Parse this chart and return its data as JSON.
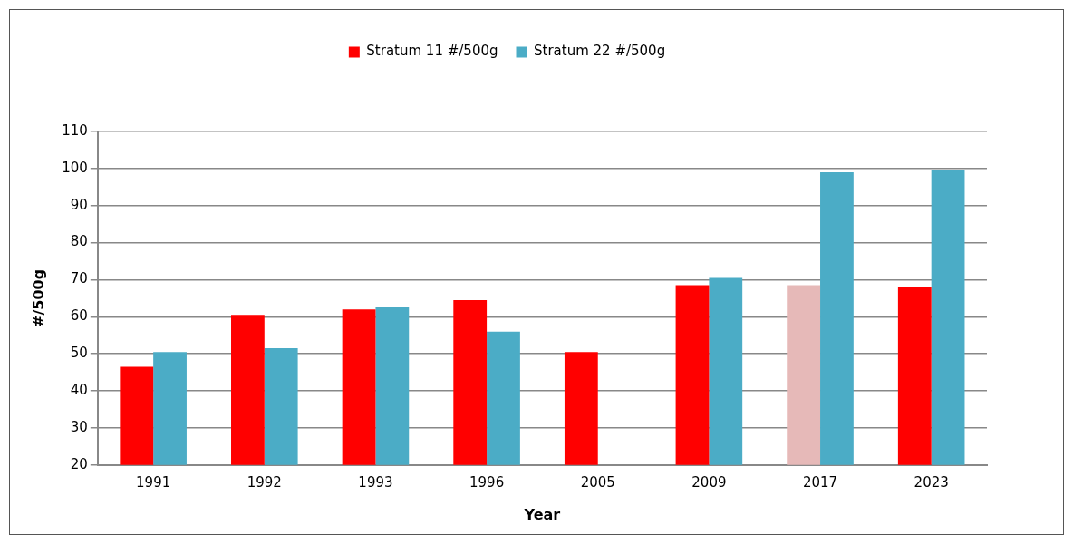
{
  "chart_data": {
    "type": "bar",
    "xlabel": "Year",
    "ylabel": "#/500g",
    "categories": [
      "1991",
      "1992",
      "1993",
      "1996",
      "2005",
      "2009",
      "2017",
      "2023"
    ],
    "series": [
      {
        "name": "Stratum 11 #/500g",
        "color": "#ff0000",
        "colors": [
          "#ff0000",
          "#ff0000",
          "#ff0000",
          "#ff0000",
          "#ff0000",
          "#ff0000",
          "#e6b9b8",
          "#ff0000"
        ],
        "values": [
          46.5,
          60.5,
          62,
          64.5,
          50.5,
          68.5,
          68.5,
          68
        ]
      },
      {
        "name": "Stratum 22 #/500g",
        "color": "#4bacc6",
        "values": [
          50.5,
          51.5,
          62.5,
          56,
          null,
          70.5,
          99,
          99.5
        ]
      }
    ],
    "ylim": [
      20,
      110
    ],
    "yticks": [
      20,
      30,
      40,
      50,
      60,
      70,
      80,
      90,
      100,
      110
    ],
    "grid": "y",
    "legend": "top"
  }
}
